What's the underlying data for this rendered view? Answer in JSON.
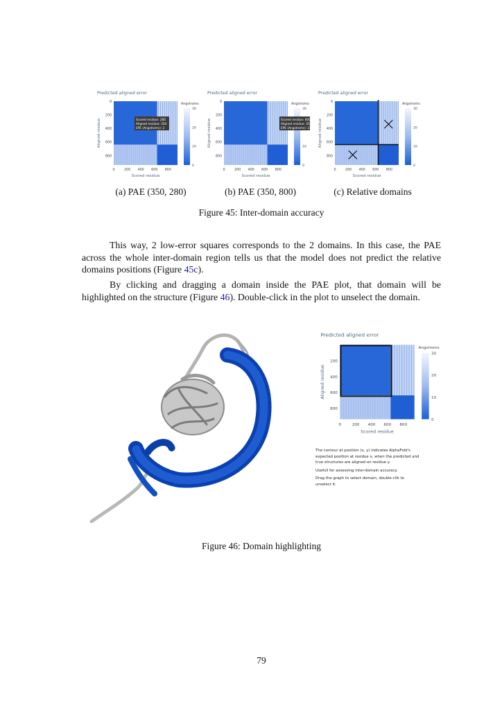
{
  "figure45": {
    "panels": [
      {
        "plot": {
          "title": "Predicted aligned error",
          "xlabel": "Scored residue",
          "ylabel": "Aligned residue",
          "colorbar_title": "Angstroms",
          "xticks": [
            "0",
            "200",
            "400",
            "600",
            "800"
          ],
          "yticks": [
            "0",
            "200",
            "400",
            "600",
            "800"
          ],
          "colorbar_ticks": [
            "30",
            "20",
            "10",
            "0"
          ],
          "tooltip": [
            "Scored residue: 280",
            "Aligned residue: 350",
            "EPE (Angstroms): 2"
          ]
        },
        "caption": "(a) PAE (350, 280)"
      },
      {
        "plot": {
          "title": "Predicted aligned error",
          "xlabel": "Scored residue",
          "ylabel": "Aligned residue",
          "colorbar_title": "Angstroms",
          "xticks": [
            "0",
            "200",
            "400",
            "600",
            "800"
          ],
          "yticks": [
            "0",
            "200",
            "400",
            "600",
            "800"
          ],
          "colorbar_ticks": [
            "30",
            "20",
            "10",
            "0"
          ],
          "tooltip": [
            "Scored residue: 800",
            "Aligned residue: 350",
            "EPE (Angstroms): 27"
          ]
        },
        "caption": "(b) PAE (350, 800)"
      },
      {
        "plot": {
          "title": "Predicted aligned error",
          "xlabel": "Scored residue",
          "ylabel": "Aligned residue",
          "colorbar_title": "Angstroms",
          "xticks": [
            "0",
            "200",
            "400",
            "600",
            "800"
          ],
          "yticks": [
            "0",
            "200",
            "400",
            "600",
            "800"
          ],
          "colorbar_ticks": [
            "30",
            "20",
            "10",
            "0"
          ]
        },
        "caption": "(c) Relative domains"
      }
    ],
    "caption": "Figure 45: Inter-domain accuracy"
  },
  "paragraphs": [
    [
      "This way, 2 low-error squares corresponds to the 2 domains. In this case, the PAE across the whole inter-domain region tells us that the model does not predict the relative domains positions (Figure ",
      "45c",
      ")."
    ],
    [
      "By clicking and dragging a domain inside the PAE plot, that domain will be highlighted on the structure (Figure ",
      "46",
      "). Double-click in the plot to unselect the domain."
    ]
  ],
  "figure46": {
    "plot": {
      "title": "Predicted aligned error",
      "xlabel": "Scored residue",
      "ylabel": "Aligned residue",
      "colorbar_title": "Angstroms",
      "xticks": [
        "0",
        "200",
        "400",
        "600",
        "800"
      ],
      "yticks": [
        "200",
        "400",
        "600",
        "800"
      ],
      "colorbar_ticks": [
        "30",
        "20",
        "10",
        "0"
      ]
    },
    "notes": [
      "The contour at position (x, y) indicates AlphaFold's expected position at residue x, when the predicted and true structures are aligned on residue y.",
      "Usefull for assessing inter-domain accuracy.",
      "Drag the graph to select domain, double-clik to unselect it."
    ],
    "caption": "Figure 46: Domain highlighting"
  },
  "page_number": "79"
}
